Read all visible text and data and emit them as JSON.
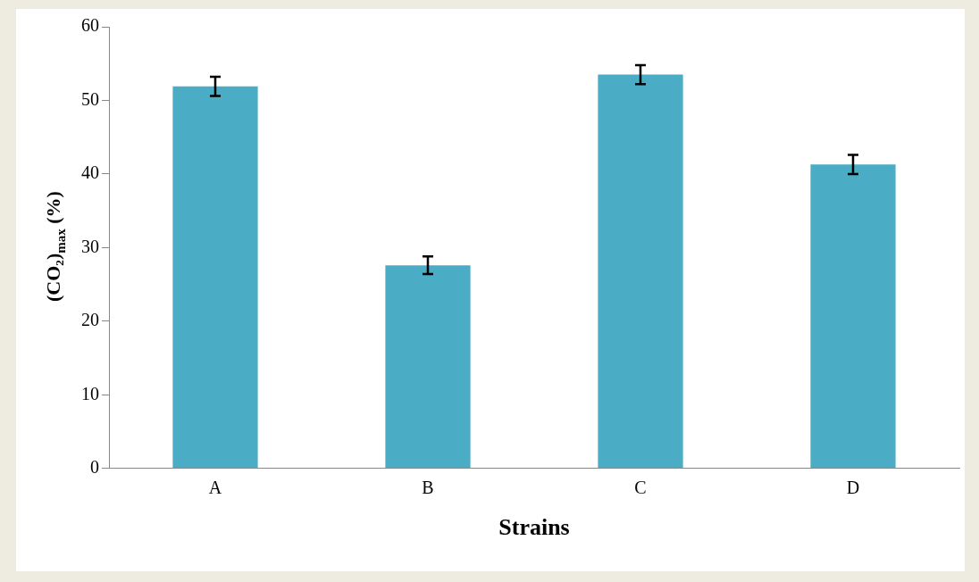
{
  "chart_data": {
    "type": "bar",
    "xlabel": "Strains",
    "ylabel": "(CO₂)$_{max}$ (%)",
    "categories": [
      "A",
      "B",
      "C",
      "D"
    ],
    "values": [
      51.9,
      27.6,
      53.5,
      41.3
    ],
    "errors": [
      1.3,
      1.2,
      1.3,
      1.3
    ],
    "color": "#4bacc6",
    "ylim": [
      0,
      60
    ],
    "yticks": [
      0,
      10,
      20,
      30,
      40,
      50,
      60
    ],
    "grid": false,
    "legend": false
  }
}
